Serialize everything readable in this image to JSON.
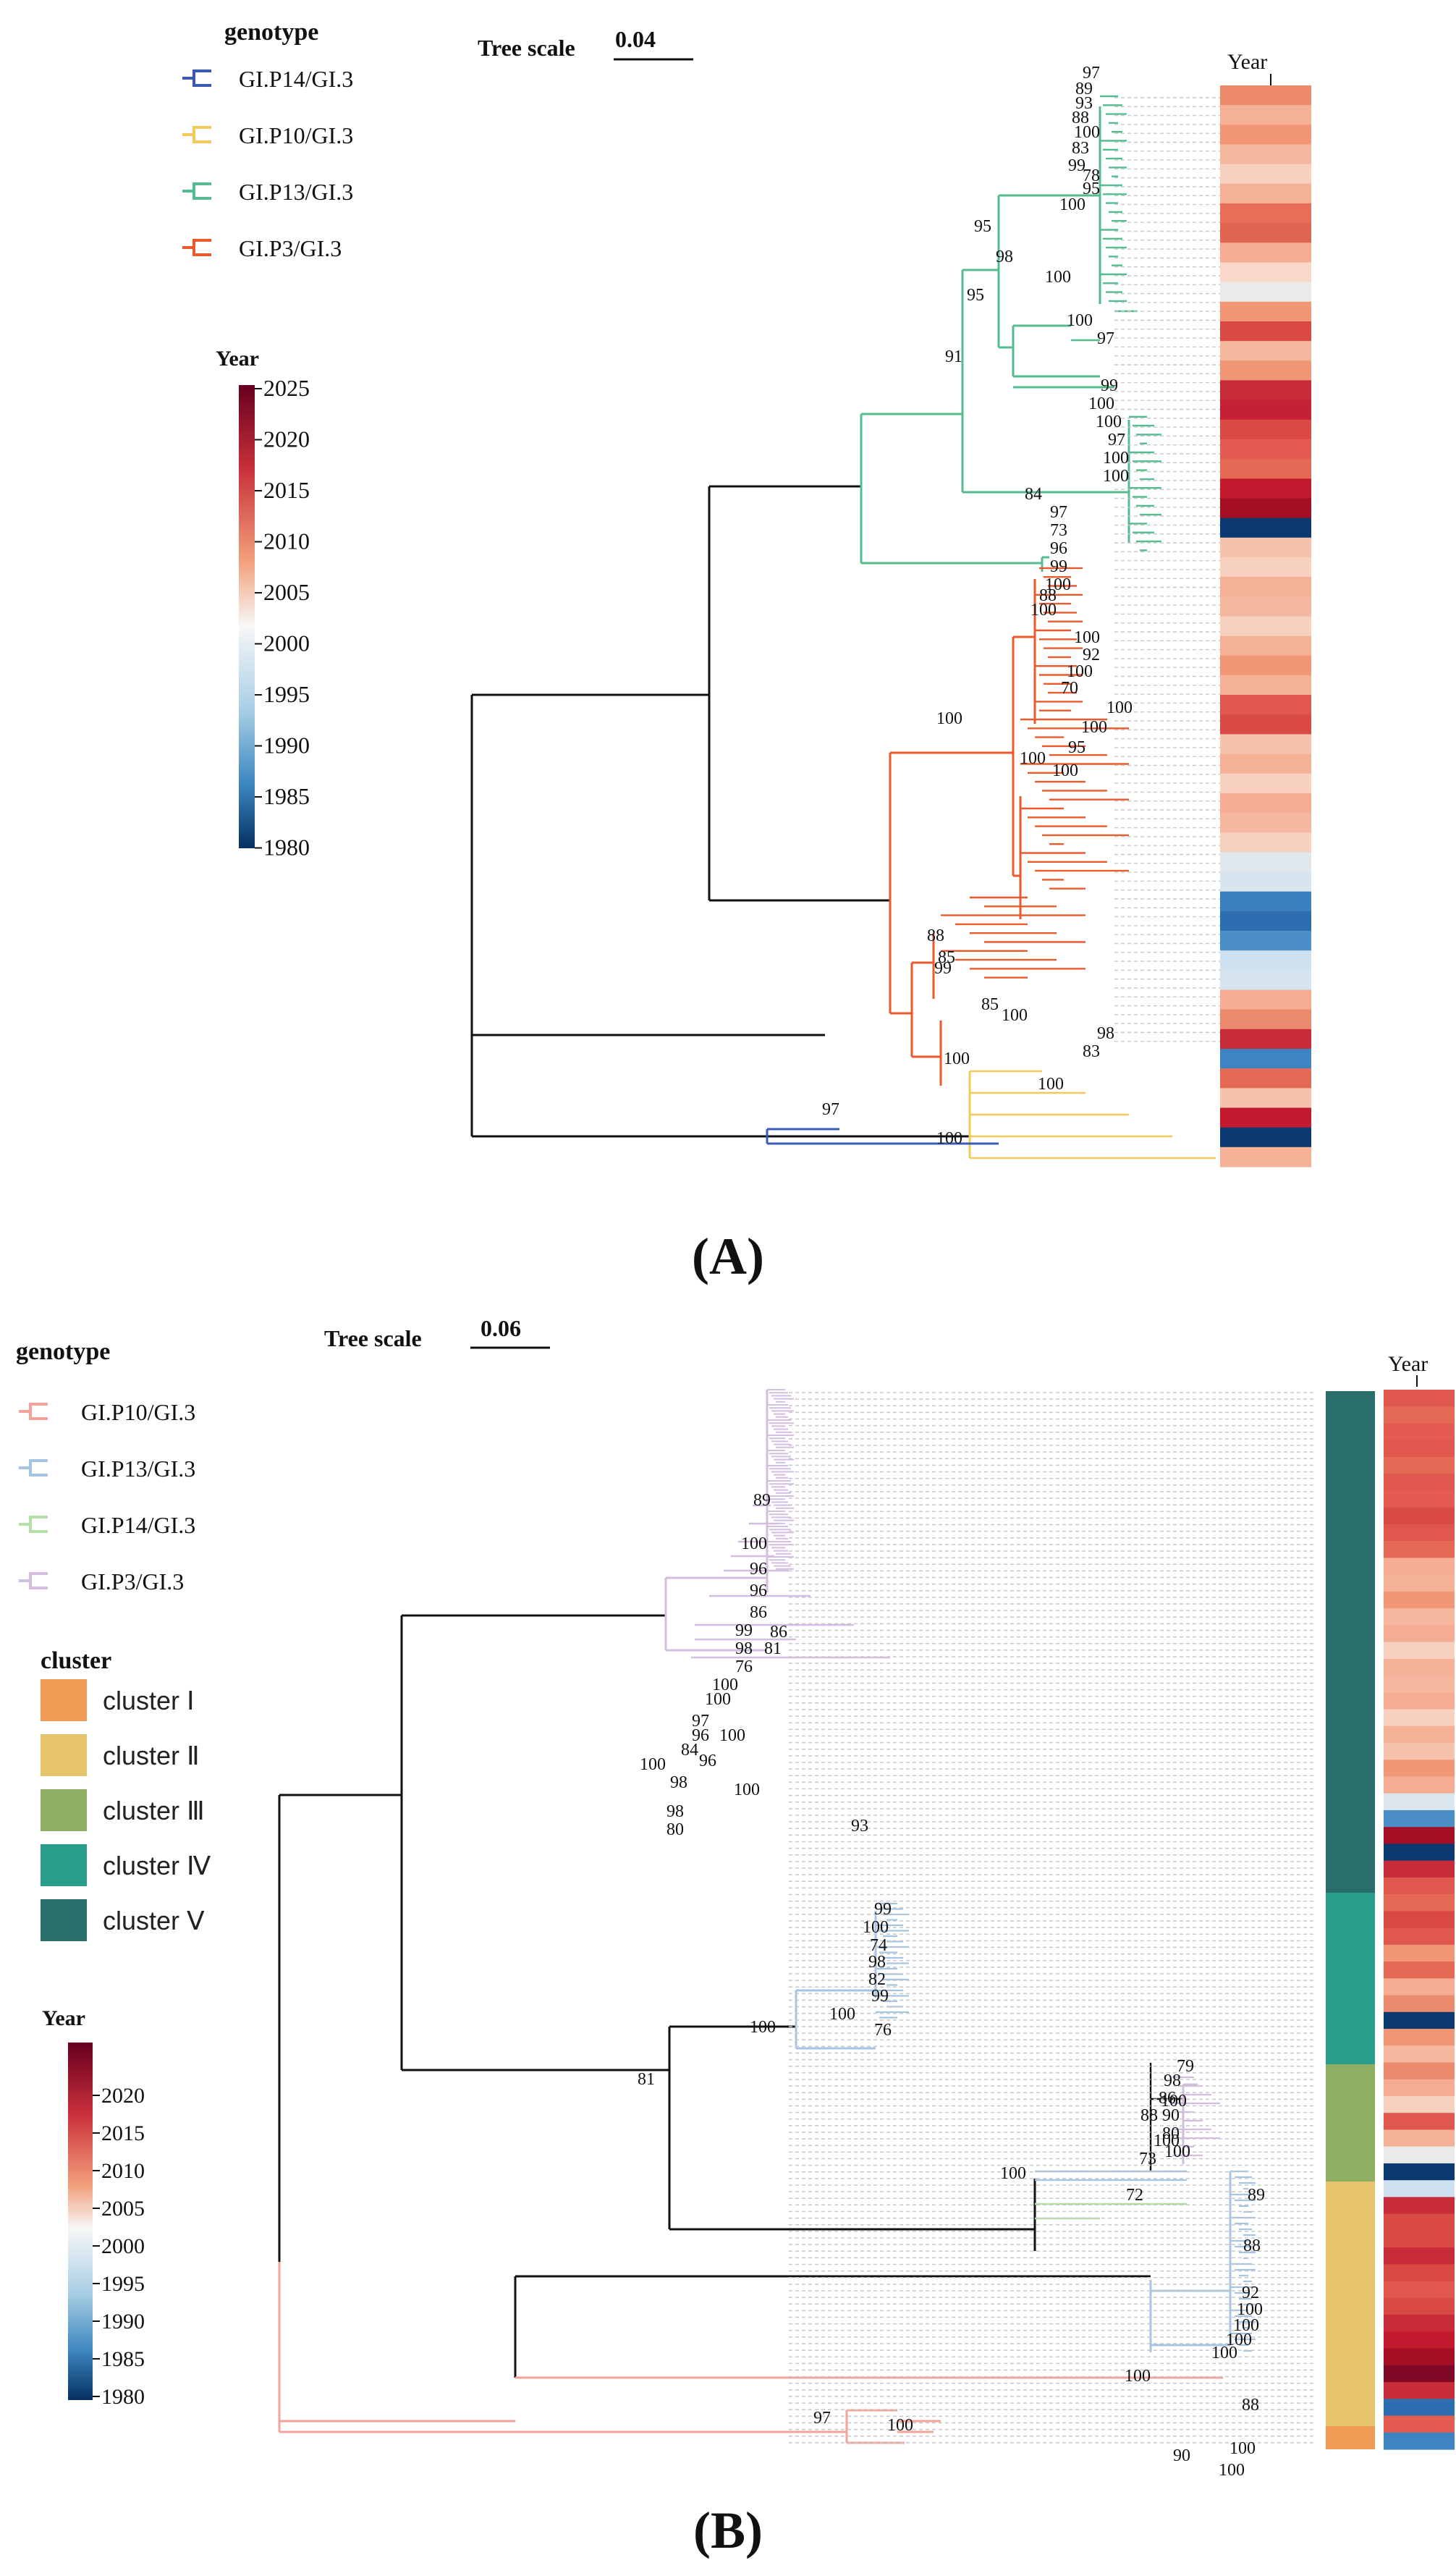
{
  "panel_a": {
    "label": "(A)",
    "legend_title": "genotype",
    "genotypes": [
      {
        "name": "GI.P14/GI.3",
        "color": "#3a5bb5"
      },
      {
        "name": "GI.P10/GI.3",
        "color": "#f3c95a"
      },
      {
        "name": "GI.P13/GI.3",
        "color": "#56bb8e"
      },
      {
        "name": "GI.P3/GI.3",
        "color": "#ea5a2c"
      }
    ],
    "year_title": "Year",
    "year_ticks": [
      "2025",
      "2020",
      "2015",
      "2010",
      "2005",
      "2000",
      "1995",
      "1990",
      "1985",
      "1980"
    ],
    "tree_scale_label": "Tree scale",
    "tree_scale_value": "0.04",
    "heatmap_title": "Year",
    "bootstrap": [
      "97",
      "89",
      "93",
      "88",
      "100",
      "83",
      "99",
      "78",
      "95",
      "100",
      "95",
      "98",
      "100",
      "95",
      "100",
      "97",
      "91",
      "99",
      "100",
      "100",
      "97",
      "100",
      "100",
      "84",
      "97",
      "73",
      "96",
      "99",
      "100",
      "88",
      "100",
      "100",
      "92",
      "100",
      "70",
      "100",
      "100",
      "95",
      "100",
      "100",
      "100",
      "88",
      "85",
      "99",
      "85",
      "100",
      "98",
      "83",
      "100",
      "100",
      "100",
      "97"
    ]
  },
  "panel_b": {
    "label": "(B)",
    "legend_title": "genotype",
    "genotypes": [
      {
        "name": "GI.P10/GI.3",
        "color": "#f2a39a"
      },
      {
        "name": "GI.P13/GI.3",
        "color": "#a6c4e4"
      },
      {
        "name": "GI.P14/GI.3",
        "color": "#b3e0a6"
      },
      {
        "name": "GI.P3/GI.3",
        "color": "#d3bde0"
      }
    ],
    "cluster_title": "cluster",
    "clusters": [
      {
        "name": "cluster Ⅰ",
        "color": "#f19c56"
      },
      {
        "name": "cluster Ⅱ",
        "color": "#e5c46b"
      },
      {
        "name": "cluster Ⅲ",
        "color": "#8eae63"
      },
      {
        "name": "cluster Ⅳ",
        "color": "#2a9e8d"
      },
      {
        "name": "cluster Ⅴ",
        "color": "#2a6e6a"
      }
    ],
    "year_title": "Year",
    "year_ticks": [
      "2020",
      "2015",
      "2010",
      "2005",
      "2000",
      "1995",
      "1990",
      "1985",
      "1980"
    ],
    "tree_scale_label": "Tree scale",
    "tree_scale_value": "0.06",
    "heatmap_title": "Year",
    "bootstrap": [
      "89",
      "100",
      "96",
      "96",
      "86",
      "99",
      "86",
      "98",
      "81",
      "76",
      "100",
      "100",
      "97",
      "96",
      "100",
      "84",
      "100",
      "96",
      "98",
      "100",
      "98",
      "93",
      "80",
      "99",
      "100",
      "74",
      "98",
      "82",
      "99",
      "100",
      "76",
      "100",
      "81",
      "79",
      "98",
      "86",
      "100",
      "90",
      "88",
      "80",
      "100",
      "100",
      "73",
      "100",
      "72",
      "89",
      "88",
      "92",
      "100",
      "100",
      "100",
      "100",
      "88",
      "100",
      "100",
      "90",
      "100",
      "97",
      "100"
    ]
  }
}
